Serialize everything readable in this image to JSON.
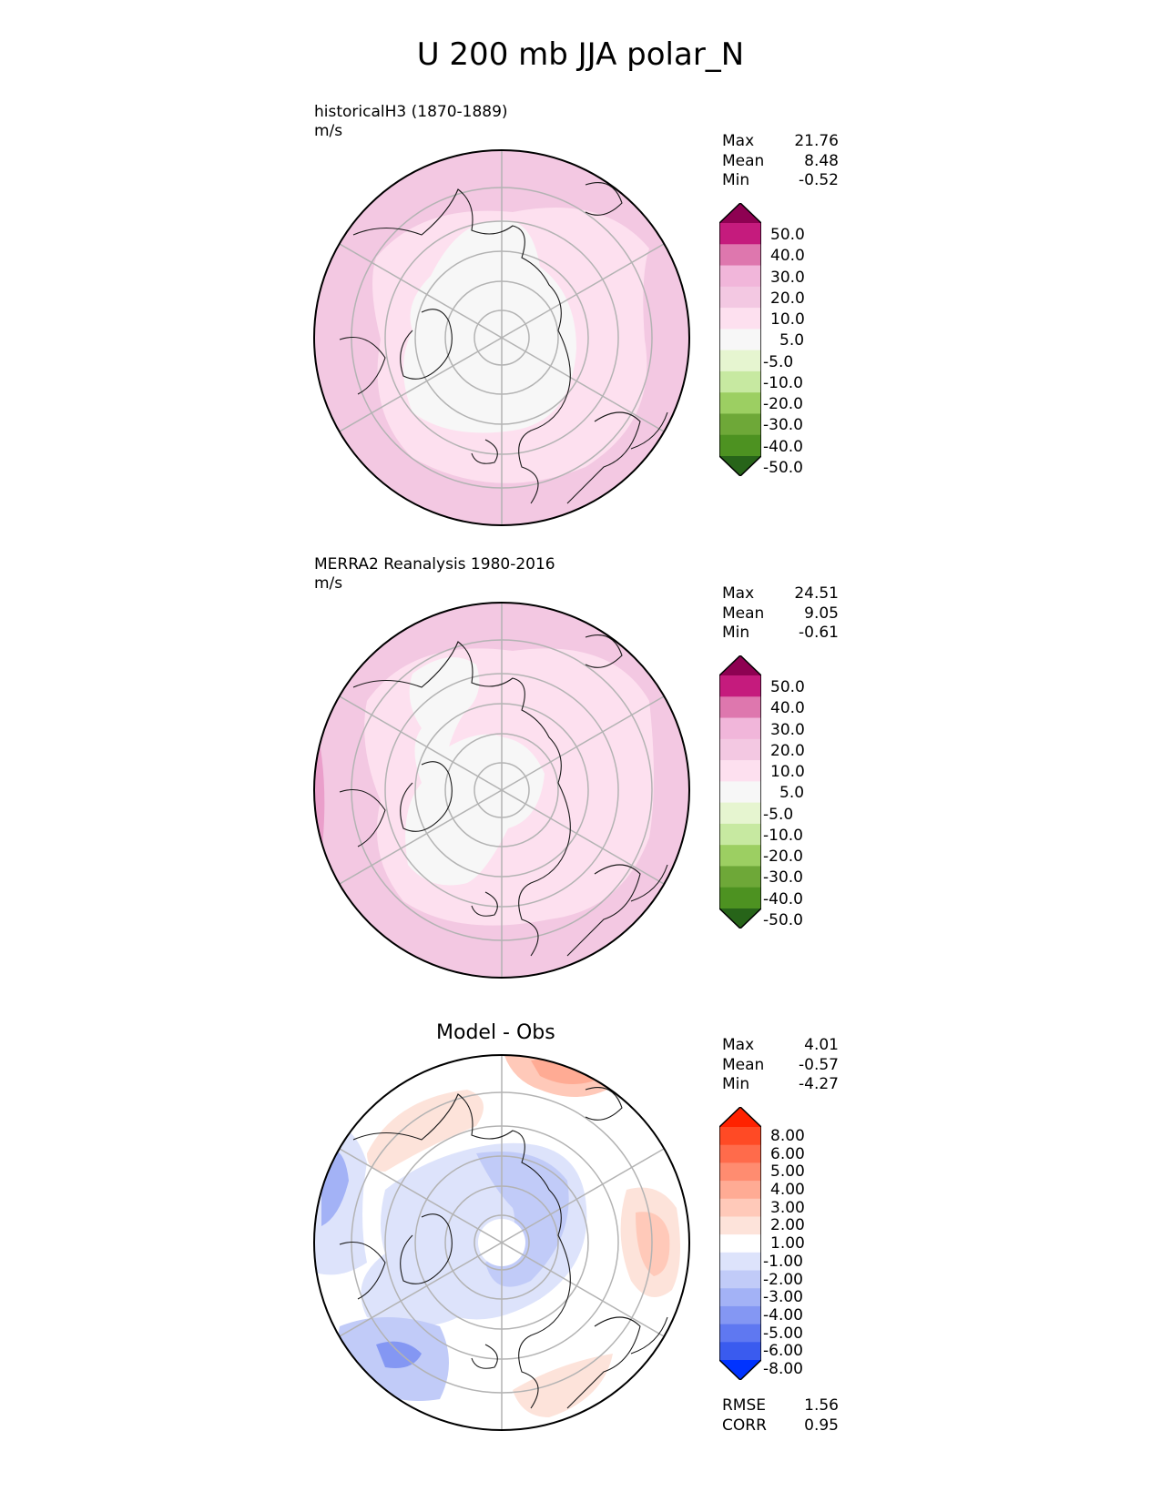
{
  "title": "U 200 mb JJA polar_N",
  "panels": [
    {
      "subtitle_line1": "historicalH3 (1870-1889)",
      "subtitle_line2": "m/s",
      "stats": {
        "max_label": "Max",
        "max": "21.76",
        "mean_label": "Mean",
        "mean": "8.48",
        "min_label": "Min",
        "min": "-0.52"
      }
    },
    {
      "subtitle_line1": "MERRA2 Reanalysis 1980-2016",
      "subtitle_line2": "m/s",
      "stats": {
        "max_label": "Max",
        "max": "24.51",
        "mean_label": "Mean",
        "mean": "9.05",
        "min_label": "Min",
        "min": "-0.61"
      }
    },
    {
      "center_title": "Model - Obs",
      "stats": {
        "max_label": "Max",
        "max": "4.01",
        "mean_label": "Mean",
        "mean": "-0.57",
        "min_label": "Min",
        "min": "-4.27"
      },
      "rmse_label": "RMSE",
      "rmse": "1.56",
      "corr_label": "CORR",
      "corr": "0.95"
    }
  ],
  "colorbar_main": {
    "labels": [
      "50.0",
      "40.0",
      "30.0",
      "20.0",
      "10.0",
      "5.0",
      "-5.0",
      "-10.0",
      "-20.0",
      "-30.0",
      "-40.0",
      "-50.0"
    ],
    "colors": [
      "#8e0152",
      "#c51b7d",
      "#de77ae",
      "#f1b6da",
      "#f3c8e2",
      "#fde0ef",
      "#f7f7f7",
      "#e6f5d0",
      "#c7e9a1",
      "#9ccf62",
      "#6ea838",
      "#4d9221",
      "#276419"
    ]
  },
  "colorbar_diff": {
    "labels": [
      "8.00",
      "6.00",
      "5.00",
      "4.00",
      "3.00",
      "2.00",
      "1.00",
      "-1.00",
      "-2.00",
      "-3.00",
      "-4.00",
      "-5.00",
      "-6.00",
      "-8.00"
    ],
    "colors": [
      "#ff2200",
      "#ff4a25",
      "#ff6b4b",
      "#ff8c70",
      "#ffab94",
      "#ffc9b9",
      "#fde3da",
      "#ffffff",
      "#dde3fb",
      "#c1cbf8",
      "#a3b2f6",
      "#8497f3",
      "#5f78f1",
      "#3a5bef",
      "#0033ff"
    ]
  }
}
